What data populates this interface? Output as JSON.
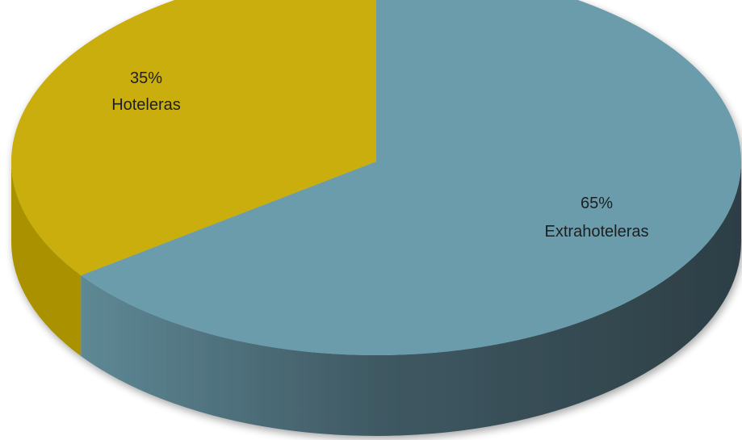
{
  "chart_data": {
    "type": "pie",
    "style": "3d",
    "title": "",
    "slices": [
      {
        "label": "Hoteleras",
        "value": 35,
        "value_label": "35%",
        "color": "#C9AE07",
        "side_color": "#A99106"
      },
      {
        "label": "Extrahoteleras",
        "value": 65,
        "value_label": "65%",
        "color": "#6A9CAC",
        "side_color_light": "#5E8895",
        "side_color_dark": "#2D3E45"
      }
    ],
    "legend": "none",
    "start_angle": "12 o'clock",
    "direction": "clockwise, Extrahoteleras first"
  }
}
